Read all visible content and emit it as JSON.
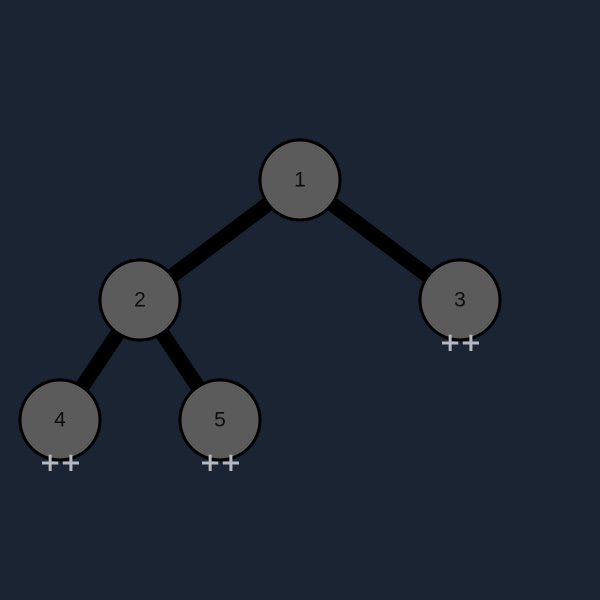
{
  "colors": {
    "background": "#1b2433",
    "node_fill": "#5b5b5b",
    "node_stroke": "#000000",
    "edge": "#000000",
    "label": "#0d0d0d",
    "marker": "#b4b8c0"
  },
  "tree": {
    "nodes": [
      {
        "id": "1",
        "label": "1",
        "parent": null,
        "collapsed_marker": ""
      },
      {
        "id": "2",
        "label": "2",
        "parent": "1",
        "collapsed_marker": ""
      },
      {
        "id": "3",
        "label": "3",
        "parent": "1",
        "collapsed_marker": "++"
      },
      {
        "id": "4",
        "label": "4",
        "parent": "2",
        "collapsed_marker": "++"
      },
      {
        "id": "5",
        "label": "5",
        "parent": "2",
        "collapsed_marker": "++"
      }
    ]
  }
}
